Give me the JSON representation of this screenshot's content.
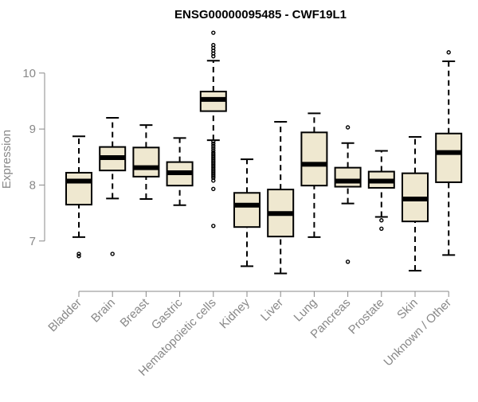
{
  "chart_data": {
    "type": "boxplot",
    "title": "ENSG00000095485 - CWF19L1",
    "xlabel": "",
    "ylabel": "Expression",
    "ylim": [
      6.3,
      10.85
    ],
    "yticks": [
      7,
      8,
      9,
      10
    ],
    "box_color": "#efe8d0",
    "categories": [
      "Bladder",
      "Brain",
      "Breast",
      "Gastric",
      "Hematopoietic cells",
      "Kidney",
      "Liver",
      "Lung",
      "Pancreas",
      "Prostate",
      "Skin",
      "Unknown / Other"
    ],
    "series": [
      {
        "name": "Bladder",
        "whisker_low": 7.07,
        "q1": 7.65,
        "median": 8.07,
        "q3": 8.22,
        "whisker_high": 8.87,
        "outliers": [
          6.77,
          6.73
        ]
      },
      {
        "name": "Brain",
        "whisker_low": 7.76,
        "q1": 8.26,
        "median": 8.49,
        "q3": 8.68,
        "whisker_high": 9.2,
        "outliers": [
          6.77
        ]
      },
      {
        "name": "Breast",
        "whisker_low": 7.75,
        "q1": 8.15,
        "median": 8.31,
        "q3": 8.67,
        "whisker_high": 9.07,
        "outliers": []
      },
      {
        "name": "Gastric",
        "whisker_low": 7.64,
        "q1": 7.99,
        "median": 8.22,
        "q3": 8.41,
        "whisker_high": 8.84,
        "outliers": []
      },
      {
        "name": "Hematopoietic cells",
        "whisker_low": 8.8,
        "q1": 9.32,
        "median": 9.53,
        "q3": 9.67,
        "whisker_high": 10.22,
        "outliers": [
          10.72,
          10.5,
          10.45,
          10.4,
          10.35,
          10.3,
          8.78,
          8.74,
          8.7,
          8.66,
          8.62,
          8.58,
          8.55,
          8.52,
          8.49,
          8.46,
          8.43,
          8.4,
          8.37,
          8.34,
          8.31,
          8.28,
          8.25,
          8.22,
          8.19,
          8.16,
          8.13,
          8.08,
          7.93,
          7.27
        ]
      },
      {
        "name": "Kidney",
        "whisker_low": 6.55,
        "q1": 7.25,
        "median": 7.64,
        "q3": 7.86,
        "whisker_high": 8.46,
        "outliers": []
      },
      {
        "name": "Liver",
        "whisker_low": 6.42,
        "q1": 7.08,
        "median": 7.49,
        "q3": 7.92,
        "whisker_high": 9.13,
        "outliers": []
      },
      {
        "name": "Lung",
        "whisker_low": 7.07,
        "q1": 7.99,
        "median": 8.37,
        "q3": 8.94,
        "whisker_high": 9.28,
        "outliers": []
      },
      {
        "name": "Pancreas",
        "whisker_low": 7.67,
        "q1": 7.97,
        "median": 8.07,
        "q3": 8.31,
        "whisker_high": 8.75,
        "outliers": [
          9.03,
          6.63
        ]
      },
      {
        "name": "Prostate",
        "whisker_low": 7.43,
        "q1": 7.95,
        "median": 8.07,
        "q3": 8.24,
        "whisker_high": 8.61,
        "outliers": [
          7.37,
          7.22
        ]
      },
      {
        "name": "Skin",
        "whisker_low": 6.47,
        "q1": 7.35,
        "median": 7.75,
        "q3": 8.21,
        "whisker_high": 8.86,
        "outliers": []
      },
      {
        "name": "Unknown / Other",
        "whisker_low": 6.75,
        "q1": 8.05,
        "median": 8.58,
        "q3": 8.92,
        "whisker_high": 10.21,
        "outliers": [
          10.37
        ]
      }
    ]
  }
}
